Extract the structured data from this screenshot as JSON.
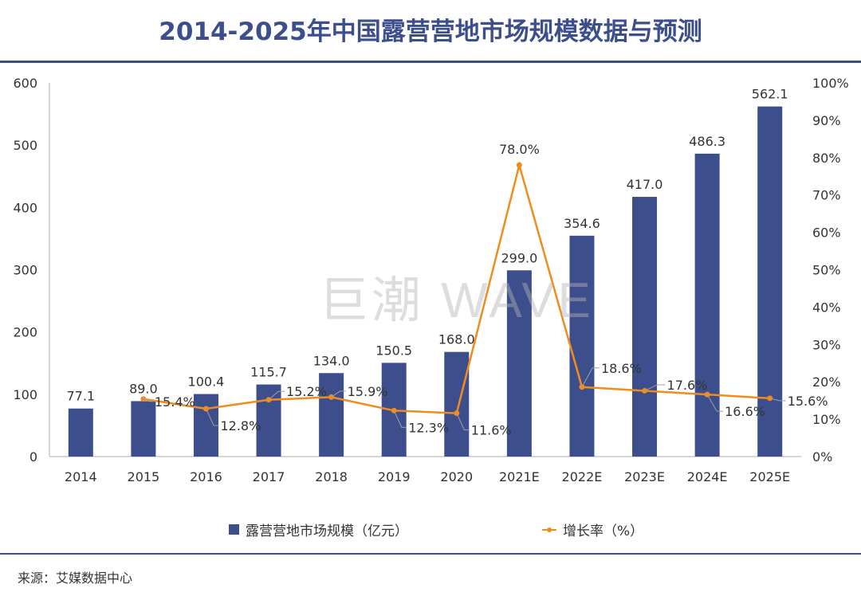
{
  "title": "2014-2025年中国露营营地市场规模数据与预测",
  "watermark": "巨潮 WAVE",
  "source": "来源：艾媒数据中心",
  "colors": {
    "bar": "#3d4e8c",
    "line": "#f08c1e",
    "title": "#3d4e8c",
    "axis": "#c8c8c8",
    "text": "#333333"
  },
  "legend": {
    "bar_label": "露营营地市场规模（亿元）",
    "line_label": "增长率（%）"
  },
  "chart_data": {
    "type": "bar",
    "title": "2014-2025年中国露营营地市场规模数据与预测",
    "categories": [
      "2014",
      "2015",
      "2016",
      "2017",
      "2018",
      "2019",
      "2020",
      "2021E",
      "2022E",
      "2023E",
      "2024E",
      "2025E"
    ],
    "series": [
      {
        "name": "露营营地市场规模（亿元）",
        "type": "bar",
        "axis": "left",
        "values": [
          77.1,
          89.0,
          100.4,
          115.7,
          134.0,
          150.5,
          168.0,
          299.0,
          354.6,
          417.0,
          486.3,
          562.1
        ],
        "labels": [
          "77.1",
          "89.0",
          "100.4",
          "115.7",
          "134.0",
          "150.5",
          "168.0",
          "299.0",
          "354.6",
          "417.0",
          "486.3",
          "562.1"
        ]
      },
      {
        "name": "增长率（%）",
        "type": "line",
        "axis": "right",
        "values": [
          null,
          15.4,
          12.8,
          15.2,
          15.9,
          12.3,
          11.6,
          78.0,
          18.6,
          17.6,
          16.6,
          15.6
        ],
        "labels": [
          null,
          "15.4%",
          "12.8%",
          "15.2%",
          "15.9%",
          "12.3%",
          "11.6%",
          "78.0%",
          "18.6%",
          "17.6%",
          "16.6%",
          "15.6%"
        ]
      }
    ],
    "left_axis": {
      "ylim": [
        0,
        600
      ],
      "ticks": [
        "0",
        "100",
        "200",
        "300",
        "400",
        "500",
        "600"
      ]
    },
    "right_axis": {
      "ylim": [
        0,
        100
      ],
      "ticks": [
        "0%",
        "10%",
        "20%",
        "30%",
        "40%",
        "50%",
        "60%",
        "70%",
        "80%",
        "90%",
        "100%"
      ]
    },
    "xlabel": "",
    "ylabel": "",
    "grid": false,
    "legend_position": "bottom"
  }
}
